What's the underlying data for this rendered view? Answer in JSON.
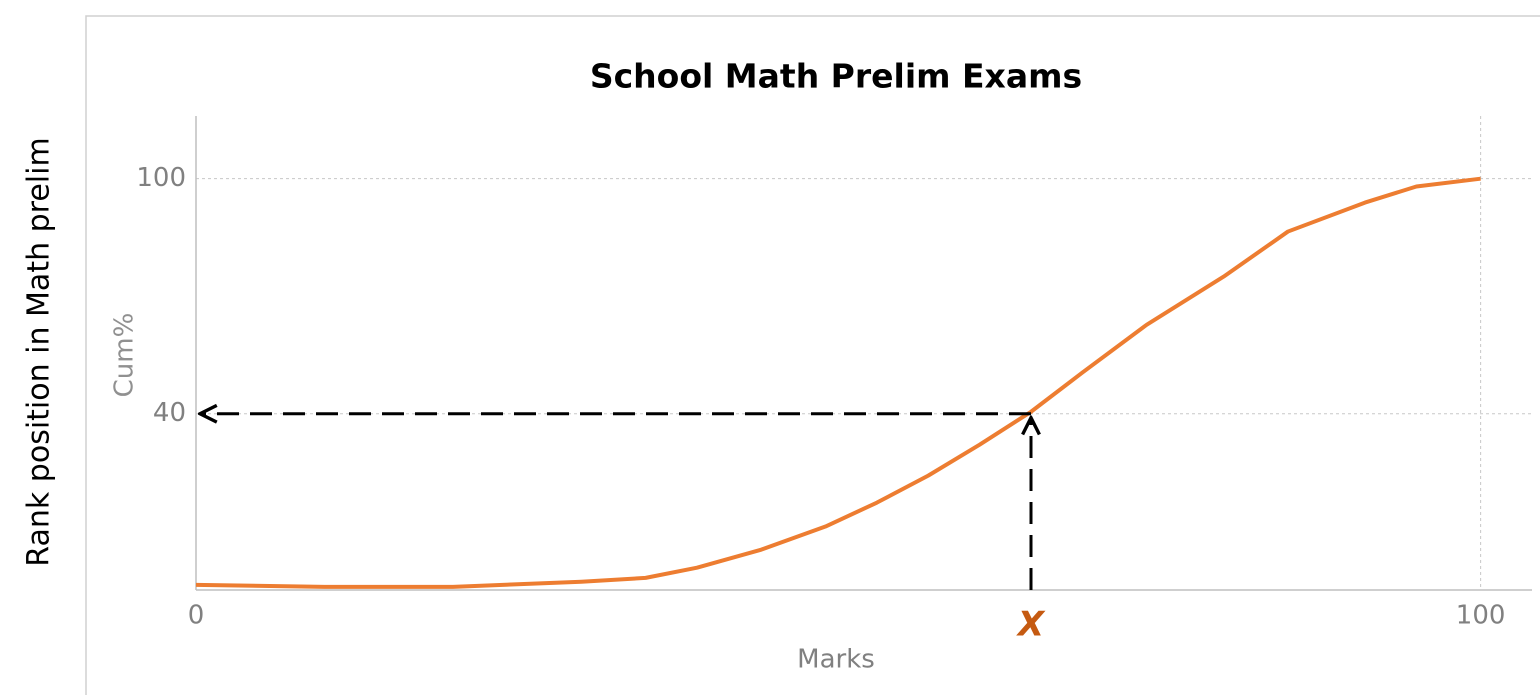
{
  "chart_data": {
    "type": "line",
    "title": "School Math Prelim Exams",
    "side_label": "Rank position in Math prelim",
    "x_label": "Marks",
    "y_label": "Cum%",
    "xlim": [
      0,
      104
    ],
    "xticks": [
      0,
      100
    ],
    "ylim": [
      -5,
      116
    ],
    "yticks": [
      40,
      100
    ],
    "grid": true,
    "series": [
      {
        "name": "Cum%",
        "color": "#ed7d31",
        "x": [
          0,
          10,
          20,
          30,
          35,
          39,
          44,
          49,
          53,
          57,
          61,
          65,
          69,
          74,
          80,
          85,
          91,
          95,
          100
        ],
        "values": [
          -3.7,
          -4.2,
          -4.2,
          -2.9,
          -1.9,
          0.7,
          5.3,
          11.2,
          17.3,
          24.2,
          32.1,
          40.5,
          50.5,
          62.7,
          75,
          86.5,
          93.9,
          98,
          100
        ]
      }
    ],
    "annotations": [
      {
        "text": "X",
        "x": 65,
        "y": 40,
        "color": "#c55a11"
      }
    ]
  }
}
